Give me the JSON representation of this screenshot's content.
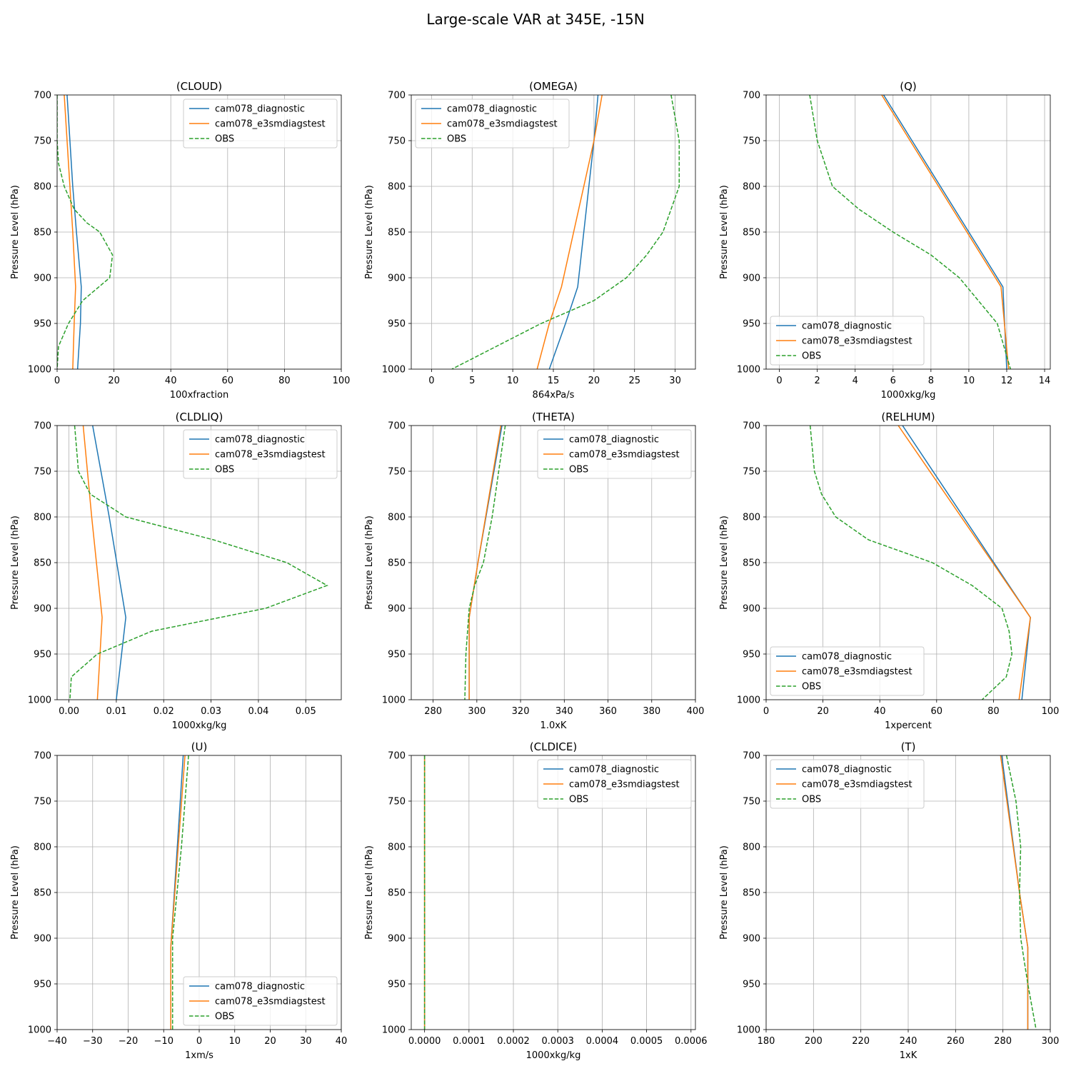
{
  "figure": {
    "title": "Large-scale VAR at 345E, -15N"
  },
  "colors": {
    "diag": "#1f77b4",
    "e3sm": "#ff7f0e",
    "obs": "#2ca02c",
    "grid": "#b0b0b0"
  },
  "chart_data": [
    {
      "type": "line",
      "title": "(CLOUD)",
      "xlabel": "100xfraction",
      "ylabel": "Pressure Level (hPa)",
      "xlim": [
        0,
        100
      ],
      "ylim": [
        1000,
        700
      ],
      "xticks": [
        0,
        20,
        40,
        60,
        80,
        100
      ],
      "xtick_labels": [
        "0",
        "20",
        "40",
        "60",
        "80",
        "100"
      ],
      "yticks": [
        700,
        750,
        800,
        850,
        900,
        950,
        1000
      ],
      "grid": true,
      "legend": "top-right",
      "series": [
        {
          "name": "cam078_diagnostic",
          "style": "solid",
          "x": [
            3.5,
            5.5,
            6.8,
            8.5,
            8.2,
            7.2
          ],
          "y": [
            700,
            800,
            850,
            910,
            950,
            1000
          ]
        },
        {
          "name": "cam078_e3smdiagstest",
          "style": "solid",
          "x": [
            2.5,
            4.5,
            5.5,
            6.5,
            6.0,
            5.5
          ],
          "y": [
            700,
            800,
            850,
            910,
            950,
            1000
          ]
        },
        {
          "name": "OBS",
          "style": "dashed",
          "x": [
            0.0,
            0.0,
            0.5,
            2.5,
            6.0,
            10.5,
            15.0,
            19.5,
            18.5,
            9.0,
            4.0,
            0.5,
            0.0
          ],
          "y": [
            700,
            750,
            775,
            800,
            825,
            840,
            850,
            875,
            900,
            925,
            950,
            975,
            1000
          ]
        }
      ]
    },
    {
      "type": "line",
      "title": "(OMEGA)",
      "xlabel": "864xPa/s",
      "ylabel": "Pressure Level (hPa)",
      "xlim": [
        -2.5,
        32.5
      ],
      "ylim": [
        1000,
        700
      ],
      "xticks": [
        0,
        5,
        10,
        15,
        20,
        25,
        30
      ],
      "xtick_labels": [
        "0",
        "5",
        "10",
        "15",
        "20",
        "25",
        "30"
      ],
      "yticks": [
        700,
        750,
        800,
        850,
        900,
        950,
        1000
      ],
      "grid": true,
      "legend": "top-left",
      "series": [
        {
          "name": "cam078_diagnostic",
          "style": "solid",
          "x": [
            20.5,
            20.0,
            18.0,
            16.5,
            14.5
          ],
          "y": [
            700,
            750,
            910,
            950,
            1000
          ]
        },
        {
          "name": "cam078_e3smdiagstest",
          "style": "solid",
          "x": [
            21.0,
            20.0,
            16.0,
            14.5,
            13.0
          ],
          "y": [
            700,
            750,
            910,
            950,
            1000
          ]
        },
        {
          "name": "OBS",
          "style": "dashed",
          "x": [
            29.5,
            30.5,
            30.5,
            29.5,
            28.5,
            26.5,
            24.0,
            20.0,
            13.5,
            8.0,
            2.5
          ],
          "y": [
            700,
            750,
            800,
            825,
            850,
            875,
            900,
            925,
            950,
            975,
            1000
          ]
        }
      ]
    },
    {
      "type": "line",
      "title": "(Q)",
      "xlabel": "1000xkg/kg",
      "ylabel": "Pressure Level (hPa)",
      "xlim": [
        -0.7,
        14.3
      ],
      "ylim": [
        1000,
        700
      ],
      "xticks": [
        0,
        2,
        4,
        6,
        8,
        10,
        12,
        14
      ],
      "xtick_labels": [
        "0",
        "2",
        "4",
        "6",
        "8",
        "10",
        "12",
        "14"
      ],
      "yticks": [
        700,
        750,
        800,
        850,
        900,
        950,
        1000
      ],
      "grid": true,
      "legend": "bottom-left",
      "series": [
        {
          "name": "cam078_diagnostic",
          "style": "solid",
          "x": [
            5.5,
            11.8,
            12.0
          ],
          "y": [
            700,
            910,
            1000
          ]
        },
        {
          "name": "cam078_e3smdiagstest",
          "style": "solid",
          "x": [
            5.4,
            11.7,
            12.1
          ],
          "y": [
            700,
            910,
            1000
          ]
        },
        {
          "name": "OBS",
          "style": "dashed",
          "x": [
            1.6,
            2.0,
            2.4,
            2.8,
            4.2,
            6.0,
            8.0,
            9.5,
            10.5,
            11.5,
            12.2
          ],
          "y": [
            700,
            750,
            775,
            800,
            825,
            850,
            875,
            900,
            925,
            950,
            1000
          ]
        }
      ]
    },
    {
      "type": "line",
      "title": "(CLDLIQ)",
      "xlabel": "1000xkg/kg",
      "ylabel": "Pressure Level (hPa)",
      "xlim": [
        -0.0025,
        0.0575
      ],
      "ylim": [
        1000,
        700
      ],
      "xticks": [
        0,
        0.01,
        0.02,
        0.03,
        0.04,
        0.05
      ],
      "xtick_labels": [
        "0.00",
        "0.01",
        "0.02",
        "0.03",
        "0.04",
        "0.05"
      ],
      "yticks": [
        700,
        750,
        800,
        850,
        900,
        950,
        1000
      ],
      "grid": true,
      "legend": "top-right",
      "series": [
        {
          "name": "cam078_diagnostic",
          "style": "solid",
          "x": [
            0.005,
            0.0085,
            0.012,
            0.01
          ],
          "y": [
            700,
            800,
            910,
            1000
          ]
        },
        {
          "name": "cam078_e3smdiagstest",
          "style": "solid",
          "x": [
            0.003,
            0.0048,
            0.007,
            0.006
          ],
          "y": [
            700,
            800,
            910,
            1000
          ]
        },
        {
          "name": "OBS",
          "style": "dashed",
          "x": [
            0.0012,
            0.002,
            0.0045,
            0.012,
            0.0305,
            0.046,
            0.0545,
            0.0415,
            0.0175,
            0.006,
            0.0005,
            0.0002
          ],
          "y": [
            700,
            750,
            775,
            800,
            825,
            850,
            875,
            900,
            925,
            950,
            975,
            1000
          ]
        }
      ]
    },
    {
      "type": "line",
      "title": "(THETA)",
      "xlabel": "1.0xK",
      "ylabel": "Pressure Level (hPa)",
      "xlim": [
        270,
        400
      ],
      "ylim": [
        1000,
        700
      ],
      "xticks": [
        280,
        300,
        320,
        340,
        360,
        380,
        400
      ],
      "xtick_labels": [
        "280",
        "300",
        "320",
        "340",
        "360",
        "380",
        "400"
      ],
      "yticks": [
        700,
        750,
        800,
        850,
        900,
        950,
        1000
      ],
      "grid": true,
      "legend": "top-right",
      "series": [
        {
          "name": "cam078_diagnostic",
          "style": "solid",
          "x": [
            311.5,
            300.5,
            296.5,
            296.5
          ],
          "y": [
            700,
            850,
            910,
            1000
          ]
        },
        {
          "name": "cam078_e3smdiagstest",
          "style": "solid",
          "x": [
            311.0,
            300.5,
            296.5,
            296.5
          ],
          "y": [
            700,
            850,
            910,
            1000
          ]
        },
        {
          "name": "OBS",
          "style": "dashed",
          "x": [
            313.0,
            310.0,
            307.0,
            303.0,
            299.0,
            296.5,
            295.0,
            294.5
          ],
          "y": [
            700,
            750,
            800,
            850,
            875,
            900,
            950,
            1000
          ]
        }
      ]
    },
    {
      "type": "line",
      "title": "(RELHUM)",
      "xlabel": "1xpercent",
      "ylabel": "Pressure Level (hPa)",
      "xlim": [
        0,
        100
      ],
      "ylim": [
        1000,
        700
      ],
      "xticks": [
        0,
        20,
        40,
        60,
        80,
        100
      ],
      "xtick_labels": [
        "0",
        "20",
        "40",
        "60",
        "80",
        "100"
      ],
      "yticks": [
        700,
        750,
        800,
        850,
        900,
        950,
        1000
      ],
      "grid": true,
      "legend": "bottom-left",
      "series": [
        {
          "name": "cam078_diagnostic",
          "style": "solid",
          "x": [
            48.0,
            93.0,
            90.0
          ],
          "y": [
            700,
            910,
            1000
          ]
        },
        {
          "name": "cam078_e3smdiagstest",
          "style": "solid",
          "x": [
            46.5,
            93.0,
            89.0
          ],
          "y": [
            700,
            910,
            1000
          ]
        },
        {
          "name": "OBS",
          "style": "dashed",
          "x": [
            15.5,
            17.0,
            19.5,
            24.5,
            36.0,
            58.5,
            72.5,
            83.0,
            85.5,
            86.5,
            84.5,
            76.0
          ],
          "y": [
            700,
            750,
            775,
            800,
            825,
            850,
            875,
            900,
            925,
            950,
            975,
            1000
          ]
        }
      ]
    },
    {
      "type": "line",
      "title": "(U)",
      "xlabel": "1xm/s",
      "ylabel": "Pressure Level (hPa)",
      "xlim": [
        -40,
        40
      ],
      "ylim": [
        1000,
        700
      ],
      "xticks": [
        -40,
        -30,
        -20,
        -10,
        0,
        10,
        20,
        30,
        40
      ],
      "xtick_labels": [
        "−40",
        "−30",
        "−20",
        "−10",
        "0",
        "10",
        "20",
        "30",
        "40"
      ],
      "yticks": [
        700,
        750,
        800,
        850,
        900,
        950,
        1000
      ],
      "grid": true,
      "legend": "bottom-right",
      "series": [
        {
          "name": "cam078_diagnostic",
          "style": "solid",
          "x": [
            -4.5,
            -8.0,
            -8.0
          ],
          "y": [
            700,
            910,
            1000
          ]
        },
        {
          "name": "cam078_e3smdiagstest",
          "style": "solid",
          "x": [
            -4.0,
            -8.0,
            -8.0
          ],
          "y": [
            700,
            910,
            1000
          ]
        },
        {
          "name": "OBS",
          "style": "dashed",
          "x": [
            -3.0,
            -5.0,
            -7.5,
            -7.5
          ],
          "y": [
            700,
            800,
            900,
            1000
          ]
        }
      ]
    },
    {
      "type": "line",
      "title": "(CLDICE)",
      "xlabel": "1000xkg/kg",
      "ylabel": "Pressure Level (hPa)",
      "xlim": [
        -3e-05,
        0.00061
      ],
      "ylim": [
        1000,
        700
      ],
      "xticks": [
        0,
        0.0001,
        0.0002,
        0.0003,
        0.0004,
        0.0005,
        0.0006
      ],
      "xtick_labels": [
        "0.0000",
        "0.0001",
        "0.0002",
        "0.0003",
        "0.0004",
        "0.0005",
        "0.0006"
      ],
      "yticks": [
        700,
        750,
        800,
        850,
        900,
        950,
        1000
      ],
      "grid": true,
      "legend": "top-right",
      "series": [
        {
          "name": "cam078_diagnostic",
          "style": "solid",
          "x": [
            0,
            0
          ],
          "y": [
            700,
            1000
          ]
        },
        {
          "name": "cam078_e3smdiagstest",
          "style": "solid",
          "x": [
            0,
            0
          ],
          "y": [
            700,
            1000
          ]
        },
        {
          "name": "OBS",
          "style": "dashed",
          "x": [
            0,
            0
          ],
          "y": [
            700,
            1000
          ]
        }
      ]
    },
    {
      "type": "line",
      "title": "(T)",
      "xlabel": "1xK",
      "ylabel": "Pressure Level (hPa)",
      "xlim": [
        180,
        300
      ],
      "ylim": [
        1000,
        700
      ],
      "xticks": [
        180,
        200,
        220,
        240,
        260,
        280,
        300
      ],
      "xtick_labels": [
        "180",
        "200",
        "220",
        "240",
        "260",
        "280",
        "300"
      ],
      "yticks": [
        700,
        750,
        800,
        850,
        900,
        950,
        1000
      ],
      "grid": true,
      "legend": "top-left",
      "series": [
        {
          "name": "cam078_diagnostic",
          "style": "solid",
          "x": [
            279.5,
            287.0,
            290.5,
            290.5
          ],
          "y": [
            700,
            850,
            910,
            1000
          ]
        },
        {
          "name": "cam078_e3smdiagstest",
          "style": "solid",
          "x": [
            279.0,
            287.0,
            290.5,
            290.5
          ],
          "y": [
            700,
            850,
            910,
            1000
          ]
        },
        {
          "name": "OBS",
          "style": "dashed",
          "x": [
            281.5,
            285.5,
            287.5,
            287.0,
            287.5,
            290.5,
            294.0
          ],
          "y": [
            700,
            750,
            800,
            850,
            900,
            950,
            1000
          ]
        }
      ]
    }
  ]
}
